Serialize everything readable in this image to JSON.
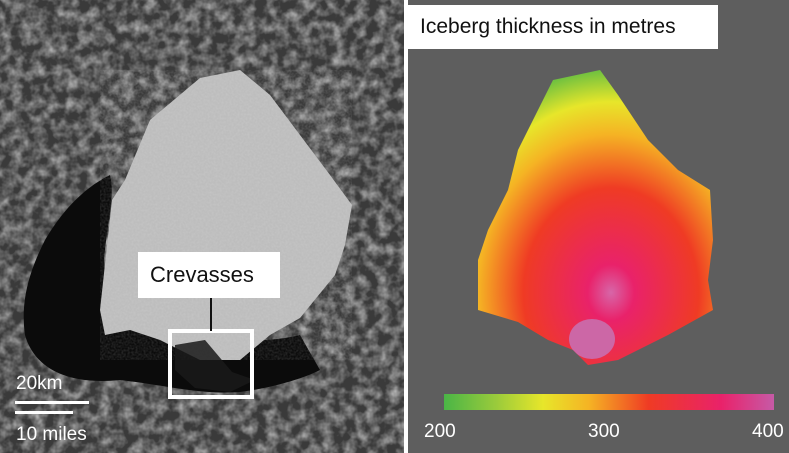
{
  "left_panel": {
    "annotation_label": "Crevasses",
    "scale": {
      "metric_label": "20km",
      "imperial_label": "10 miles"
    }
  },
  "right_panel": {
    "title": "Iceberg thickness in metres",
    "colorbar": {
      "tick_labels": [
        "200",
        "300",
        "400"
      ],
      "colors": [
        "#4ab546",
        "#e7e62a",
        "#ef3b24",
        "#e9226a",
        "#c65aa6"
      ]
    }
  },
  "colors": {
    "sea_ice": "#3c3c3c",
    "open_water": "#0a0a0a",
    "iceberg": "#bcbcbc",
    "background": "#5e5e5e"
  }
}
